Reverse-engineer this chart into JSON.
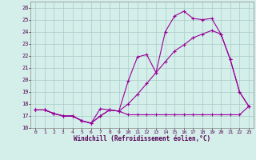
{
  "xlabel": "Windchill (Refroidissement éolien,°C)",
  "xlim": [
    -0.5,
    23.5
  ],
  "ylim": [
    16,
    26.5
  ],
  "yticks": [
    16,
    17,
    18,
    19,
    20,
    21,
    22,
    23,
    24,
    25,
    26
  ],
  "xticks": [
    0,
    1,
    2,
    3,
    4,
    5,
    6,
    7,
    8,
    9,
    10,
    11,
    12,
    13,
    14,
    15,
    16,
    17,
    18,
    19,
    20,
    21,
    22,
    23
  ],
  "bg_color": "#d4eeea",
  "grid_color": "#aaccc8",
  "line_color": "#990099",
  "line1_x": [
    0,
    1,
    2,
    3,
    4,
    5,
    6,
    7,
    8,
    9,
    10,
    11,
    12,
    13,
    14,
    15,
    16,
    17,
    18,
    19,
    20,
    21,
    22,
    23
  ],
  "line1_y": [
    17.5,
    17.5,
    17.2,
    17.0,
    17.0,
    16.6,
    16.4,
    17.0,
    17.5,
    17.4,
    17.1,
    17.1,
    17.1,
    17.1,
    17.1,
    17.1,
    17.1,
    17.1,
    17.1,
    17.1,
    17.1,
    17.1,
    17.1,
    17.8
  ],
  "line2_x": [
    0,
    1,
    2,
    3,
    4,
    5,
    6,
    7,
    8,
    9,
    10,
    11,
    12,
    13,
    14,
    15,
    16,
    17,
    18,
    19,
    20,
    21,
    22,
    23
  ],
  "line2_y": [
    17.5,
    17.5,
    17.2,
    17.0,
    17.0,
    16.6,
    16.4,
    17.6,
    17.5,
    17.4,
    19.9,
    21.9,
    22.1,
    20.6,
    24.0,
    25.3,
    25.7,
    25.1,
    25.0,
    25.1,
    23.8,
    21.7,
    19.0,
    17.8
  ],
  "line3_x": [
    0,
    1,
    2,
    3,
    4,
    5,
    6,
    7,
    8,
    9,
    10,
    11,
    12,
    13,
    14,
    15,
    16,
    17,
    18,
    19,
    20,
    21,
    22,
    23
  ],
  "line3_y": [
    17.5,
    17.5,
    17.2,
    17.0,
    17.0,
    16.6,
    16.4,
    17.0,
    17.5,
    17.4,
    18.0,
    18.8,
    19.7,
    20.6,
    21.5,
    22.4,
    22.9,
    23.5,
    23.8,
    24.1,
    23.8,
    21.7,
    19.0,
    17.8
  ]
}
